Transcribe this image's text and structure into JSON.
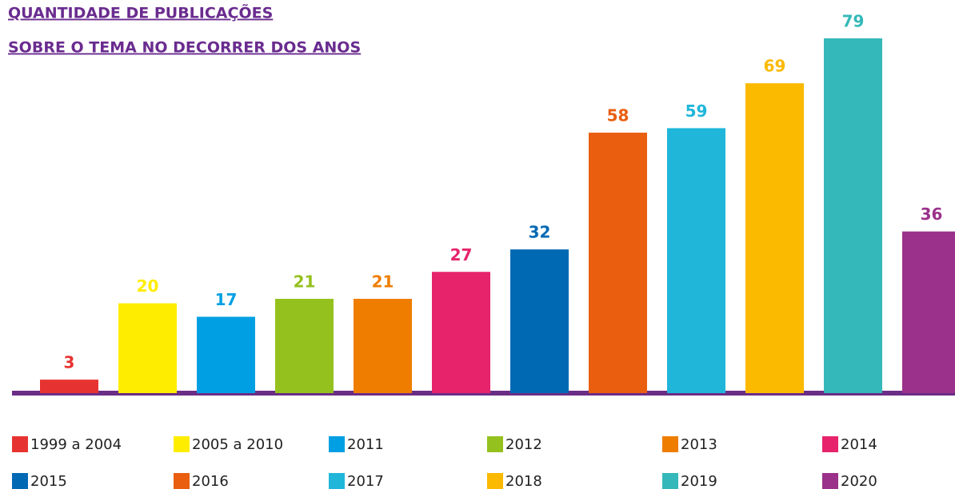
{
  "chart_data": {
    "type": "bar",
    "title": [
      "QUANTIDADE DE PUBLICAÇÕES",
      "SOBRE O TEMA NO DECORRER DOS ANOS"
    ],
    "categories": [
      "1999 a 2004",
      "2005 a 2010",
      "2011",
      "2012",
      "2013",
      "2014",
      "2015",
      "2016",
      "2017",
      "2018",
      "2019",
      "2020"
    ],
    "values": [
      3,
      20,
      17,
      21,
      21,
      27,
      32,
      58,
      59,
      69,
      79,
      36
    ],
    "colors": [
      "#e63331",
      "#ffed00",
      "#009fe3",
      "#95c11f",
      "#ef7d00",
      "#e6236b",
      "#0069b4",
      "#e95e0f",
      "#1fb6da",
      "#fbb900",
      "#35b8b9",
      "#9b318b"
    ],
    "legend": "bottom"
  }
}
